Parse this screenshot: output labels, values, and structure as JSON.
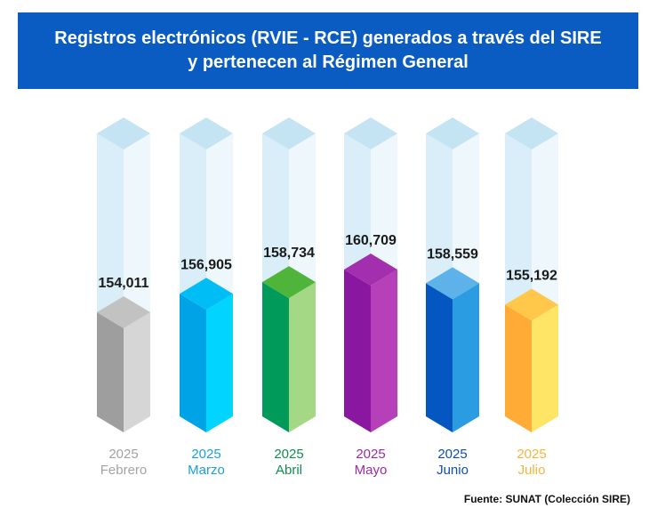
{
  "title": "Registros electrónicos (RVIE - RCE) generados a través del SIRE y pertenecen al Régimen General",
  "source": "Fuente: SUNAT (Colección SIRE)",
  "chart_data": {
    "type": "bar",
    "style": "3d-cylinder-columns",
    "title": "Registros electrónicos (RVIE - RCE) generados a través del SIRE y pertenecen al Régimen General",
    "categories": [
      {
        "year": "2025",
        "month": "Febrero"
      },
      {
        "year": "2025",
        "month": "Marzo"
      },
      {
        "year": "2025",
        "month": "Abril"
      },
      {
        "year": "2025",
        "month": "Mayo"
      },
      {
        "year": "2025",
        "month": "Junio"
      },
      {
        "year": "2025",
        "month": "Julio"
      }
    ],
    "values": [
      154011,
      156905,
      158734,
      160709,
      158559,
      155192
    ],
    "value_labels": [
      "154,011",
      "156,905",
      "158,734",
      "160,709",
      "158,559",
      "155,192"
    ],
    "colors": [
      {
        "left": "#9e9e9e",
        "right": "#d6d6d6",
        "top": "#c2c2c2",
        "label": "#a3a3a3"
      },
      {
        "left": "#00a3e6",
        "right": "#00d4ff",
        "top": "#00bdf5",
        "label": "#1aa0e0"
      },
      {
        "left": "#009a5b",
        "right": "#a4d884",
        "top": "#4fb53a",
        "label": "#0e8f4f"
      },
      {
        "left": "#8a17a0",
        "right": "#b63fba",
        "top": "#a42fae",
        "label": "#9c2aa8"
      },
      {
        "left": "#0457c0",
        "right": "#2a9ce2",
        "top": "#5db2ea",
        "label": "#0c4fb0"
      },
      {
        "left": "#ffab36",
        "right": "#ffe566",
        "top": "#ffc84a",
        "label": "#f7b43a"
      }
    ],
    "ghost_colors": {
      "left": "#d9eef8",
      "right": "#edf7fc",
      "top": "#c4e3f3"
    },
    "ylim": [
      140000,
      170000
    ],
    "grid": false,
    "legend": "none"
  }
}
